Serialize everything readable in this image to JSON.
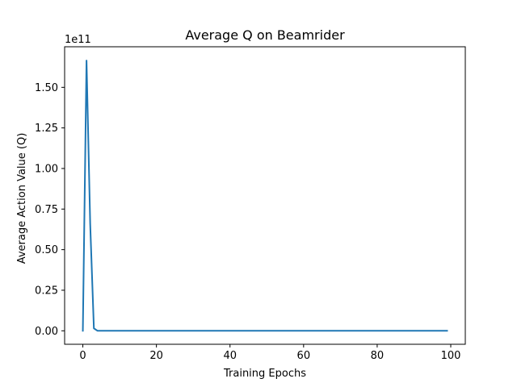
{
  "chart_data": {
    "type": "line",
    "title": "Average Q on Beamrider",
    "xlabel": "Training Epochs",
    "ylabel": "Average Action Value (Q)",
    "offset_text": "1e11",
    "xlim": [
      -4.95,
      103.95
    ],
    "ylim": [
      -0.083,
      1.75
    ],
    "scale_note": "y values in units of 1e11",
    "x_ticks": [
      {
        "value": 0,
        "label": "0"
      },
      {
        "value": 20,
        "label": "20"
      },
      {
        "value": 40,
        "label": "40"
      },
      {
        "value": 60,
        "label": "60"
      },
      {
        "value": 80,
        "label": "80"
      },
      {
        "value": 100,
        "label": "100"
      }
    ],
    "y_ticks": [
      {
        "value": 0.0,
        "label": "0.00"
      },
      {
        "value": 0.25,
        "label": "0.25"
      },
      {
        "value": 0.5,
        "label": "0.50"
      },
      {
        "value": 0.75,
        "label": "0.75"
      },
      {
        "value": 1.0,
        "label": "1.00"
      },
      {
        "value": 1.25,
        "label": "1.25"
      },
      {
        "value": 1.5,
        "label": "1.50"
      }
    ],
    "grid": false,
    "series": [
      {
        "color": "#1f77b4",
        "x": [
          0,
          1,
          2,
          3,
          4,
          5,
          10,
          20,
          30,
          40,
          50,
          60,
          70,
          80,
          90,
          99
        ],
        "y": [
          0.0,
          1.665,
          0.66,
          0.015,
          0.0,
          0.0,
          0.0,
          0.0,
          0.0,
          0.0,
          0.0,
          0.0,
          0.0,
          0.0,
          0.0,
          0.0
        ]
      }
    ]
  }
}
